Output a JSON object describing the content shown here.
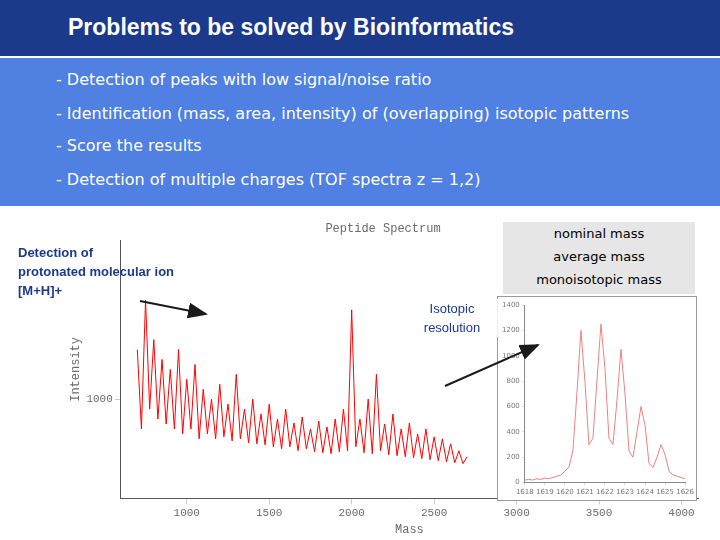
{
  "header": {
    "title": "Problems to be solved by Bioinformatics"
  },
  "bullets": [
    "- Detection of peaks with low signal/noise ratio",
    "- Identification (mass, area, intensity) of (overlapping) isotopic patterns",
    "- Score the results",
    "- Detection of multiple charges (TOF spectra z = 1,2)"
  ],
  "annotations": {
    "molecular_ion": [
      "Detection of",
      "protonated molecular ion",
      "[M+H]+"
    ],
    "isotopic": [
      "Isotopic",
      "resolution"
    ],
    "masses": [
      "nominal mass",
      "average mass",
      "monoisotopic mass"
    ]
  },
  "chart_data": [
    {
      "type": "line",
      "title": "Peptide Spectrum",
      "x_label": "Mass",
      "y_label": "Intensity",
      "x": [
        700,
        725,
        750,
        775,
        800,
        825,
        850,
        875,
        900,
        925,
        950,
        975,
        1000,
        1025,
        1050,
        1075,
        1100,
        1125,
        1150,
        1175,
        1200,
        1225,
        1250,
        1275,
        1300,
        1325,
        1350,
        1375,
        1400,
        1425,
        1450,
        1475,
        1500,
        1525,
        1550,
        1575,
        1600,
        1625,
        1650,
        1675,
        1700,
        1725,
        1750,
        1775,
        1800,
        1825,
        1850,
        1875,
        1900,
        1925,
        1950,
        1975,
        2000,
        2025,
        2050,
        2075,
        2100,
        2125,
        2150,
        2175,
        2200,
        2225,
        2250,
        2275,
        2300,
        2325,
        2350,
        2375,
        2400,
        2425,
        2450,
        2475,
        2500,
        2525,
        2550,
        2575,
        2600,
        2625,
        2650,
        2675,
        2700
      ],
      "values": [
        1500,
        700,
        2000,
        900,
        1600,
        800,
        1400,
        750,
        1300,
        700,
        1500,
        650,
        1200,
        700,
        1350,
        600,
        1100,
        650,
        1000,
        600,
        1150,
        620,
        950,
        580,
        1250,
        600,
        900,
        560,
        1000,
        550,
        850,
        540,
        950,
        520,
        800,
        500,
        900,
        520,
        760,
        480,
        820,
        500,
        700,
        470,
        780,
        460,
        720,
        450,
        800,
        470,
        900,
        480,
        1900,
        520,
        800,
        460,
        1000,
        450,
        1250,
        480,
        750,
        440,
        850,
        430,
        700,
        420,
        760,
        410,
        650,
        400,
        700,
        390,
        620,
        380,
        600,
        370,
        550,
        360,
        480,
        350,
        420
      ],
      "color": "#ff0000",
      "xlim": [
        600,
        4100
      ],
      "xticks": [
        1000,
        1500,
        2000,
        2500,
        3000,
        3500,
        4000
      ],
      "ylim": [
        0,
        2600
      ],
      "yticks": [
        1000
      ],
      "grid": false
    },
    {
      "type": "line",
      "x": [
        1618,
        1618.2,
        1618.4,
        1618.6,
        1618.8,
        1619,
        1619.2,
        1619.4,
        1619.6,
        1619.8,
        1620,
        1620.2,
        1620.4,
        1620.6,
        1620.8,
        1621,
        1621.2,
        1621.4,
        1621.6,
        1621.8,
        1622,
        1622.2,
        1622.4,
        1622.6,
        1622.8,
        1623,
        1623.2,
        1623.4,
        1623.6,
        1623.8,
        1624,
        1624.2,
        1624.4,
        1624.6,
        1624.8,
        1625,
        1625.2,
        1625.4,
        1625.6,
        1625.8,
        1626
      ],
      "values": [
        20,
        25,
        20,
        30,
        25,
        35,
        30,
        40,
        50,
        60,
        90,
        120,
        250,
        700,
        1200,
        800,
        300,
        350,
        800,
        1250,
        900,
        350,
        300,
        650,
        1050,
        700,
        250,
        200,
        400,
        600,
        450,
        150,
        120,
        200,
        300,
        220,
        90,
        60,
        50,
        40,
        30
      ],
      "color": "#f08080",
      "xlim": [
        1618,
        1626
      ],
      "xticks": [
        1618,
        1619,
        1620,
        1621,
        1622,
        1623,
        1624,
        1625,
        1626
      ],
      "ylim": [
        0,
        1400
      ],
      "yticks": [
        0,
        200,
        400,
        600,
        800,
        1000,
        1200,
        1400
      ],
      "grid": false
    }
  ]
}
